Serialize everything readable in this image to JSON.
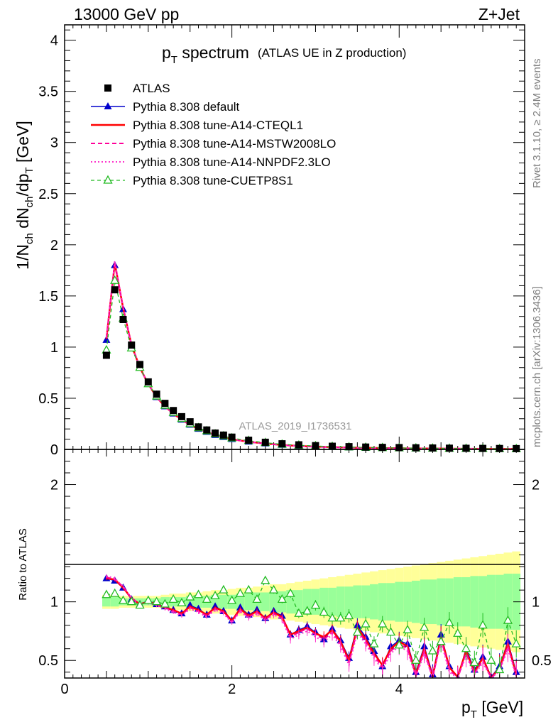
{
  "header": {
    "left": "13000 GeV pp",
    "right": "Z+Jet"
  },
  "title": {
    "main": "p",
    "main_sub": "T",
    "main_rest": " spectrum",
    "small": "(ATLAS UE in Z production)"
  },
  "watermark": "ATLAS_2019_I1736531",
  "side_labels": {
    "rivet": "Rivet 3.1.10, ≥ 2.4M events",
    "mcplots": "mcplots.cern.ch [arXiv:1306.3436]"
  },
  "axes": {
    "y_top_label": "1/N_ch dN_ch/dp_T [GeV]",
    "y_bottom_label": "Ratio to ATLAS",
    "x_label": "p_T [GeV]",
    "x_ticks": [
      "0",
      "2",
      "4"
    ],
    "y_top_ticks": [
      "0",
      "0.5",
      "1",
      "1.5",
      "2",
      "2.5",
      "3",
      "3.5",
      "4"
    ],
    "y_bottom_ticks": [
      "0.5",
      "1",
      "2"
    ]
  },
  "colors": {
    "atlas": "#000000",
    "default": "#0000cc",
    "cteql1": "#ff0000",
    "mstw": "#ff0099",
    "nnpdf": "#ff33cc",
    "cuetp8s1": "#22bb22",
    "band_inner": "#99ff99",
    "band_outer": "#ffff99"
  },
  "chart_data": [
    {
      "type": "scatter",
      "panel": "main",
      "x_unit": "GeV",
      "xlim": [
        0,
        5.5
      ],
      "ylim": [
        0,
        4.15
      ],
      "x": [
        0.5,
        0.6,
        0.7,
        0.8,
        0.9,
        1.0,
        1.1,
        1.2,
        1.3,
        1.4,
        1.5,
        1.6,
        1.7,
        1.8,
        1.9,
        2.0,
        2.2,
        2.4,
        2.6,
        2.8,
        3.0,
        3.2,
        3.4,
        3.6,
        3.8,
        4.0,
        4.2,
        4.4,
        4.6,
        4.8,
        5.0,
        5.2,
        5.4
      ],
      "series": [
        {
          "name": "ATLAS",
          "style": "markers-square",
          "color": "#000000",
          "values": [
            0.92,
            1.56,
            1.27,
            1.02,
            0.83,
            0.66,
            0.54,
            0.45,
            0.38,
            0.32,
            0.27,
            0.22,
            0.19,
            0.16,
            0.14,
            0.12,
            0.09,
            0.07,
            0.055,
            0.045,
            0.037,
            0.031,
            0.027,
            0.023,
            0.02,
            0.018,
            0.016,
            0.014,
            0.012,
            0.011,
            0.01,
            0.009,
            0.008
          ]
        },
        {
          "name": "Pythia 8.308 default",
          "style": "line-triangle",
          "color": "#0000cc",
          "values": [
            1.07,
            1.8,
            1.37,
            1.01,
            0.8,
            0.64,
            0.51,
            0.42,
            0.35,
            0.29,
            0.24,
            0.2,
            0.17,
            0.14,
            0.12,
            0.1,
            0.075,
            0.057,
            0.043,
            0.034,
            0.027,
            0.022,
            0.018,
            0.015,
            0.013,
            0.011,
            0.009,
            0.008,
            0.007,
            0.006,
            0.005,
            0.004,
            0.004
          ]
        },
        {
          "name": "Pythia 8.308 tune-A14-CTEQL1",
          "style": "line-solid",
          "color": "#ff0000",
          "values": [
            1.08,
            1.82,
            1.38,
            1.02,
            0.8,
            0.64,
            0.51,
            0.42,
            0.35,
            0.29,
            0.24,
            0.2,
            0.17,
            0.14,
            0.12,
            0.1,
            0.075,
            0.057,
            0.043,
            0.034,
            0.027,
            0.022,
            0.018,
            0.015,
            0.013,
            0.011,
            0.009,
            0.008,
            0.007,
            0.006,
            0.005,
            0.004,
            0.004
          ]
        },
        {
          "name": "Pythia 8.308 tune-A14-MSTW2008LO",
          "style": "line-dashed",
          "color": "#ff0099",
          "values": [
            1.09,
            1.83,
            1.38,
            1.02,
            0.8,
            0.64,
            0.51,
            0.42,
            0.35,
            0.29,
            0.24,
            0.2,
            0.17,
            0.14,
            0.12,
            0.1,
            0.074,
            0.056,
            0.042,
            0.033,
            0.026,
            0.021,
            0.017,
            0.014,
            0.012,
            0.01,
            0.009,
            0.008,
            0.007,
            0.006,
            0.005,
            0.004,
            0.004
          ]
        },
        {
          "name": "Pythia 8.308 tune-A14-NNPDF2.3LO",
          "style": "line-dotted",
          "color": "#ff33cc",
          "values": [
            1.1,
            1.84,
            1.39,
            1.02,
            0.8,
            0.64,
            0.51,
            0.42,
            0.35,
            0.29,
            0.24,
            0.2,
            0.17,
            0.14,
            0.12,
            0.1,
            0.074,
            0.056,
            0.042,
            0.033,
            0.026,
            0.021,
            0.017,
            0.014,
            0.012,
            0.01,
            0.009,
            0.008,
            0.007,
            0.006,
            0.005,
            0.004,
            0.004
          ]
        },
        {
          "name": "Pythia 8.308 tune-CUETP8S1",
          "style": "line-dashed-open-triangle",
          "color": "#22bb22",
          "values": [
            0.97,
            1.65,
            1.28,
            0.99,
            0.8,
            0.64,
            0.52,
            0.43,
            0.36,
            0.3,
            0.25,
            0.21,
            0.18,
            0.15,
            0.13,
            0.11,
            0.085,
            0.065,
            0.05,
            0.04,
            0.033,
            0.027,
            0.023,
            0.019,
            0.016,
            0.014,
            0.012,
            0.011,
            0.009,
            0.008,
            0.007,
            0.006,
            0.005
          ]
        }
      ]
    },
    {
      "type": "line",
      "panel": "ratio",
      "x_unit": "GeV",
      "xlim": [
        0,
        5.5
      ],
      "ylim": [
        0.35,
        2.3
      ],
      "x": [
        0.5,
        0.6,
        0.7,
        0.8,
        0.9,
        1.0,
        1.1,
        1.2,
        1.3,
        1.4,
        1.5,
        1.6,
        1.7,
        1.8,
        1.9,
        2.0,
        2.1,
        2.2,
        2.3,
        2.4,
        2.5,
        2.6,
        2.7,
        2.8,
        2.9,
        3.0,
        3.1,
        3.2,
        3.3,
        3.4,
        3.5,
        3.6,
        3.7,
        3.8,
        3.9,
        4.0,
        4.1,
        4.2,
        4.3,
        4.4,
        4.5,
        4.6,
        4.7,
        4.8,
        4.9,
        5.0,
        5.1,
        5.2,
        5.3,
        5.4
      ],
      "band_inner": {
        "low": [
          0.96,
          0.96,
          0.97,
          0.97,
          0.97,
          0.97,
          0.97,
          0.96,
          0.96,
          0.96,
          0.95,
          0.95,
          0.95,
          0.94,
          0.94,
          0.94,
          0.93,
          0.93,
          0.92,
          0.92,
          0.91,
          0.91,
          0.9,
          0.9,
          0.89,
          0.89,
          0.88,
          0.88,
          0.87,
          0.87,
          0.86,
          0.86,
          0.85,
          0.84,
          0.84,
          0.83,
          0.83,
          0.82,
          0.81,
          0.81,
          0.8,
          0.8,
          0.79,
          0.79,
          0.78,
          0.78,
          0.77,
          0.77,
          0.76,
          0.76
        ],
        "high": [
          1.04,
          1.04,
          1.03,
          1.03,
          1.03,
          1.03,
          1.03,
          1.04,
          1.04,
          1.04,
          1.05,
          1.05,
          1.05,
          1.06,
          1.06,
          1.06,
          1.07,
          1.07,
          1.08,
          1.08,
          1.09,
          1.09,
          1.1,
          1.1,
          1.11,
          1.11,
          1.12,
          1.12,
          1.13,
          1.13,
          1.14,
          1.14,
          1.15,
          1.16,
          1.16,
          1.17,
          1.17,
          1.18,
          1.19,
          1.19,
          1.2,
          1.2,
          1.21,
          1.21,
          1.22,
          1.22,
          1.23,
          1.23,
          1.24,
          1.24
        ]
      },
      "band_outer": {
        "low": [
          0.94,
          0.94,
          0.95,
          0.95,
          0.95,
          0.95,
          0.95,
          0.94,
          0.93,
          0.93,
          0.92,
          0.92,
          0.91,
          0.9,
          0.9,
          0.89,
          0.88,
          0.88,
          0.87,
          0.86,
          0.85,
          0.85,
          0.84,
          0.83,
          0.82,
          0.81,
          0.8,
          0.79,
          0.78,
          0.77,
          0.76,
          0.75,
          0.74,
          0.73,
          0.72,
          0.71,
          0.7,
          0.69,
          0.68,
          0.67,
          0.66,
          0.65,
          0.64,
          0.63,
          0.62,
          0.61,
          0.6,
          0.59,
          0.58,
          0.57
        ],
        "high": [
          1.06,
          1.06,
          1.05,
          1.05,
          1.05,
          1.05,
          1.05,
          1.06,
          1.07,
          1.07,
          1.08,
          1.08,
          1.09,
          1.1,
          1.1,
          1.11,
          1.12,
          1.12,
          1.13,
          1.14,
          1.15,
          1.15,
          1.16,
          1.17,
          1.18,
          1.19,
          1.2,
          1.21,
          1.22,
          1.23,
          1.24,
          1.25,
          1.26,
          1.27,
          1.28,
          1.29,
          1.3,
          1.31,
          1.32,
          1.33,
          1.34,
          1.35,
          1.36,
          1.37,
          1.38,
          1.39,
          1.4,
          1.41,
          1.42,
          1.43
        ]
      },
      "series": [
        {
          "name": "Pythia 8.308 default",
          "style": "line-triangle",
          "color": "#0000cc",
          "values": [
            1.2,
            1.18,
            1.12,
            1.02,
            0.98,
            1.01,
            0.98,
            0.96,
            0.93,
            0.9,
            0.97,
            0.94,
            0.89,
            0.96,
            0.92,
            0.84,
            0.95,
            0.89,
            0.93,
            0.86,
            0.92,
            0.88,
            0.72,
            0.76,
            0.79,
            0.74,
            0.68,
            0.77,
            0.67,
            0.52,
            0.8,
            0.7,
            0.58,
            0.45,
            0.62,
            0.67,
            0.64,
            0.4,
            0.62,
            0.38,
            0.72,
            0.45,
            0.35,
            0.6,
            0.42,
            0.53,
            0.36,
            0.45,
            0.66,
            0.4
          ]
        },
        {
          "name": "Pythia 8.308 tune-A14-CTEQL1",
          "style": "line-solid",
          "color": "#ff0000",
          "values": [
            1.2,
            1.19,
            1.12,
            1.03,
            0.98,
            1.0,
            0.98,
            0.95,
            0.93,
            0.9,
            0.96,
            0.93,
            0.89,
            0.95,
            0.92,
            0.84,
            0.94,
            0.88,
            0.92,
            0.86,
            0.91,
            0.87,
            0.72,
            0.75,
            0.78,
            0.73,
            0.7,
            0.76,
            0.66,
            0.5,
            0.78,
            0.68,
            0.56,
            0.46,
            0.6,
            0.66,
            0.62,
            0.38,
            0.6,
            0.36,
            0.7,
            0.44,
            0.36,
            0.58,
            0.4,
            0.52,
            0.35,
            0.44,
            0.64,
            0.38
          ]
        },
        {
          "name": "Pythia 8.308 tune-A14-MSTW2008LO",
          "style": "line-dashed",
          "color": "#ff0099",
          "values": [
            1.21,
            1.19,
            1.13,
            1.03,
            0.98,
            1.0,
            0.97,
            0.95,
            0.92,
            0.89,
            0.95,
            0.92,
            0.88,
            0.94,
            0.91,
            0.83,
            0.93,
            0.87,
            0.91,
            0.85,
            0.9,
            0.86,
            0.7,
            0.74,
            0.77,
            0.72,
            0.68,
            0.74,
            0.64,
            0.48,
            0.76,
            0.66,
            0.54,
            0.44,
            0.58,
            0.64,
            0.6,
            0.37,
            0.58,
            0.35,
            0.68,
            0.42,
            0.35,
            0.56,
            0.39,
            0.5,
            0.35,
            0.42,
            0.62,
            0.37
          ]
        },
        {
          "name": "Pythia 8.308 tune-A14-NNPDF2.3LO",
          "style": "line-dotted",
          "color": "#ff33cc",
          "values": [
            1.22,
            1.2,
            1.13,
            1.03,
            0.98,
            0.99,
            0.97,
            0.94,
            0.91,
            0.88,
            0.94,
            0.91,
            0.87,
            0.93,
            0.9,
            0.82,
            0.92,
            0.86,
            0.9,
            0.84,
            0.89,
            0.85,
            0.68,
            0.72,
            0.75,
            0.7,
            0.66,
            0.72,
            0.62,
            0.46,
            0.74,
            0.64,
            0.52,
            0.42,
            0.56,
            0.62,
            0.58,
            0.36,
            0.56,
            0.35,
            0.66,
            0.4,
            0.35,
            0.54,
            0.38,
            0.48,
            0.35,
            0.41,
            0.6,
            0.36
          ]
        },
        {
          "name": "Pythia 8.308 tune-CUETP8S1",
          "style": "line-dashed-open-triangle",
          "color": "#22bb22",
          "values": [
            1.06,
            1.07,
            1.01,
            1.0,
            0.97,
            1.01,
            1.0,
            0.98,
            1.02,
            0.99,
            1.04,
            1.06,
            1.02,
            1.05,
            1.1,
            1.01,
            1.07,
            1.1,
            1.02,
            1.18,
            1.1,
            1.02,
            1.07,
            0.9,
            0.92,
            0.97,
            0.91,
            0.86,
            0.86,
            0.88,
            0.74,
            0.81,
            0.64,
            0.81,
            0.74,
            0.63,
            0.76,
            0.5,
            0.78,
            0.58,
            0.66,
            0.82,
            0.73,
            0.6,
            0.48,
            0.8,
            0.5,
            0.42,
            0.84,
            0.64
          ]
        }
      ]
    }
  ]
}
